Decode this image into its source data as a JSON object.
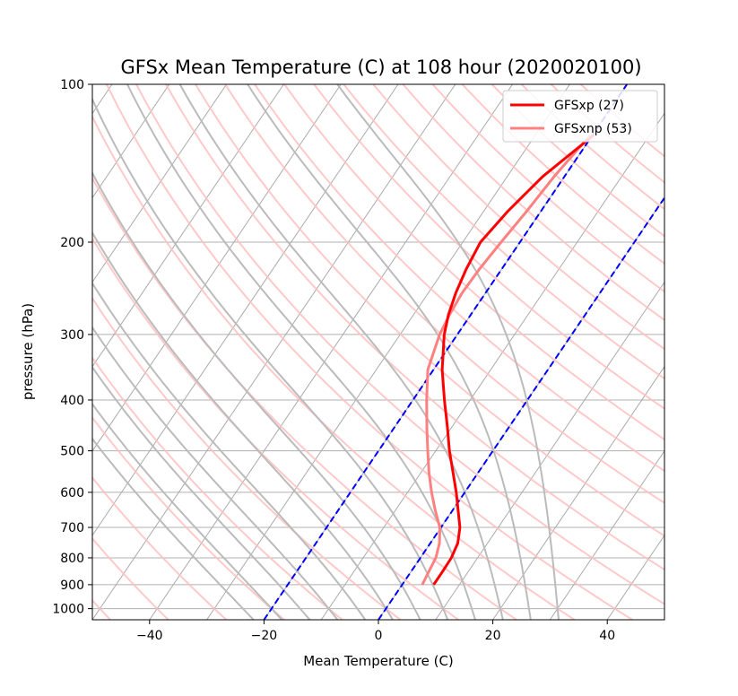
{
  "chart_data": {
    "type": "line",
    "title": "GFSx Mean Temperature (C) at 108 hour  (2020020100)",
    "xlabel": "Mean Temperature (C)",
    "ylabel": "pressure (hPa)",
    "xlim": [
      -50,
      50
    ],
    "ylim": [
      1050,
      100
    ],
    "y_scale": "log",
    "x_ticks": [
      -40,
      -20,
      0,
      20,
      40
    ],
    "x_tick_labels": [
      "−40",
      "−20",
      "0",
      "20",
      "40"
    ],
    "y_ticks": [
      100,
      200,
      300,
      400,
      500,
      600,
      700,
      800,
      900,
      1000
    ],
    "y_tick_labels": [
      "100",
      "200",
      "300",
      "400",
      "500",
      "600",
      "700",
      "800",
      "900",
      "1000"
    ],
    "grid": "horizontal at pressure ticks",
    "legend_position": "top-right",
    "series": [
      {
        "name": "GFSxp (27)",
        "color": "#ff0000",
        "pressure": [
          900,
          850,
          800,
          750,
          700,
          650,
          600,
          550,
          500,
          450,
          400,
          350,
          300,
          275,
          250,
          225,
          200,
          175,
          150,
          125
        ],
        "temperature": [
          5.5,
          5.5,
          5.4,
          4.8,
          3.3,
          1.0,
          -1.5,
          -4.4,
          -7.6,
          -10.8,
          -14.5,
          -18.5,
          -22.3,
          -23.9,
          -25.2,
          -26.2,
          -26.9,
          -25.8,
          -23.8,
          -19.8
        ]
      },
      {
        "name": "GFSxnp (53)",
        "color": "#ff8080",
        "pressure": [
          900,
          850,
          800,
          750,
          700,
          650,
          600,
          550,
          500,
          450,
          400,
          350,
          300,
          275,
          250,
          225,
          200,
          175,
          150,
          125
        ],
        "temperature": [
          3.5,
          3.1,
          2.7,
          1.6,
          -0.2,
          -3.0,
          -5.8,
          -8.6,
          -11.4,
          -14.4,
          -17.6,
          -21.0,
          -23.1,
          -23.7,
          -24.1,
          -23.9,
          -23.3,
          -22.5,
          -21.8,
          -20.4
        ]
      },
      {
        "name": "",
        "color": "#0000ff",
        "style": "dashed",
        "pressure": [
          1050,
          100
        ],
        "temperature": [
          -20,
          -20
        ]
      },
      {
        "name": "",
        "color": "#0000ff",
        "style": "dashed",
        "pressure": [
          1050,
          100
        ],
        "temperature": [
          0,
          0
        ]
      }
    ],
    "background_lines": {
      "isotherms_deg_c": [
        -120,
        -110,
        -100,
        -90,
        -80,
        -70,
        -60,
        -50,
        -40,
        -30,
        -20,
        -10,
        0,
        10,
        20,
        30,
        40,
        50
      ],
      "dry_adiabats_deg_c": [
        -60,
        -50,
        -40,
        -30,
        -20,
        -10,
        0,
        10,
        20,
        30,
        40,
        50,
        60,
        70,
        80,
        90,
        100,
        110,
        120,
        130,
        140,
        150,
        160,
        170,
        180,
        190,
        200
      ],
      "moist_adiabats_deg_c": [
        -25,
        -20,
        -15,
        -10,
        -5,
        0,
        5,
        10,
        15,
        20,
        25,
        30
      ],
      "isotherm_color": "#aaaaaa",
      "dry_adiabat_color": "#ffc0c0",
      "moist_adiabat_color": "#bbbbbb"
    }
  }
}
